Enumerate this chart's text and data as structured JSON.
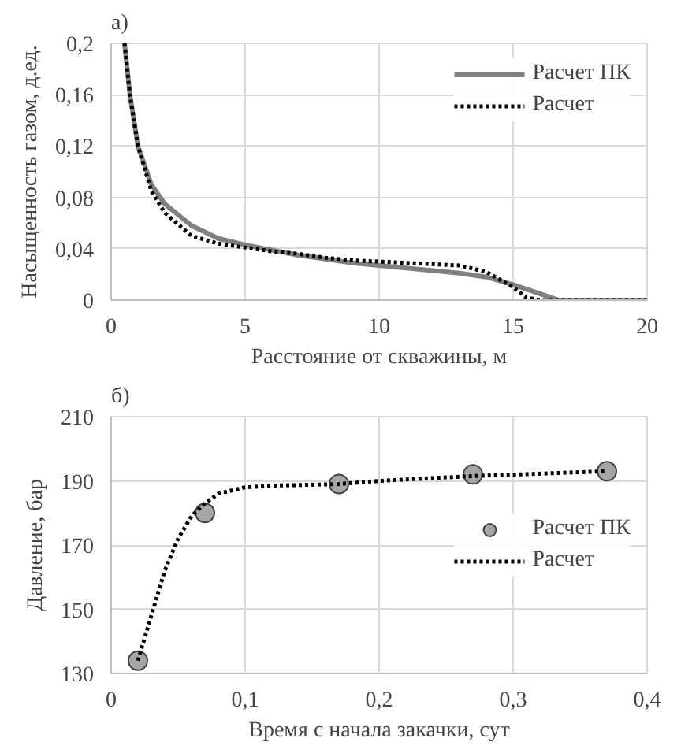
{
  "chart_data": [
    {
      "type": "line",
      "title": "а)",
      "xlabel": "Расстояние от скважины, м",
      "ylabel": "Насыщенность газом, д.ед.",
      "xlim": [
        0,
        20
      ],
      "xticks": [
        0,
        5,
        10,
        15,
        20
      ],
      "ylim": [
        0,
        0.2
      ],
      "yticks": [
        {
          "value": 0,
          "label": "0"
        },
        {
          "value": 0.04,
          "label": "0,04"
        },
        {
          "value": 0.08,
          "label": "0,08"
        },
        {
          "value": 0.12,
          "label": "0,12"
        },
        {
          "value": 0.16,
          "label": "0,16"
        },
        {
          "value": 0.2,
          "label": "0,2"
        }
      ],
      "grid": true,
      "legend": "top right",
      "series": [
        {
          "name": "Расчет ПК",
          "color": "#808080",
          "line_style": "solid",
          "x": [
            0.5,
            0.7,
            1.0,
            1.5,
            2,
            3,
            4,
            5,
            6,
            7,
            8,
            9,
            10,
            11,
            12,
            13,
            14,
            15,
            16,
            16.7,
            20
          ],
          "values": [
            0.2,
            0.16,
            0.12,
            0.09,
            0.075,
            0.058,
            0.048,
            0.043,
            0.039,
            0.035,
            0.032,
            0.029,
            0.027,
            0.025,
            0.023,
            0.021,
            0.018,
            0.012,
            0.005,
            0,
            0
          ]
        },
        {
          "name": "Расчет",
          "color": "#000000",
          "line_style": "dotted",
          "x": [
            0.5,
            0.7,
            1.0,
            1.5,
            2,
            3,
            4,
            5,
            6,
            7,
            8,
            9,
            10,
            11,
            12,
            13,
            14,
            15,
            15.5,
            16,
            20
          ],
          "values": [
            0.2,
            0.16,
            0.12,
            0.085,
            0.068,
            0.05,
            0.044,
            0.041,
            0.038,
            0.036,
            0.033,
            0.031,
            0.03,
            0.029,
            0.028,
            0.027,
            0.022,
            0.01,
            0.002,
            0,
            0
          ]
        }
      ]
    },
    {
      "type": "line",
      "title": "б)",
      "xlabel": "Время с начала закачки, сут",
      "ylabel": "Давление, бар",
      "xlim": [
        0,
        0.4
      ],
      "xticks": [
        0,
        {
          "value": 0.1,
          "label": "0,1"
        },
        {
          "value": 0.2,
          "label": "0,2"
        },
        {
          "value": 0.3,
          "label": "0,3"
        },
        {
          "value": 0.4,
          "label": "0,4"
        }
      ],
      "ylim": [
        130,
        210
      ],
      "yticks": [
        130,
        150,
        170,
        190,
        210
      ],
      "grid": true,
      "legend": "right",
      "series": [
        {
          "name": "Расчет ПК",
          "type": "scatter",
          "marker": "circle",
          "color": "#a6a6a6",
          "x": [
            0.02,
            0.07,
            0.17,
            0.27,
            0.37
          ],
          "values": [
            134,
            180,
            189,
            192,
            193
          ]
        },
        {
          "name": "Расчет",
          "type": "line",
          "color": "#000000",
          "line_style": "dotted",
          "x": [
            0.02,
            0.03,
            0.04,
            0.05,
            0.06,
            0.07,
            0.08,
            0.1,
            0.12,
            0.17,
            0.2,
            0.27,
            0.37
          ],
          "values": [
            134,
            148,
            162,
            172,
            179,
            183,
            186,
            188,
            188.5,
            189,
            190,
            191.5,
            193
          ]
        }
      ]
    }
  ]
}
